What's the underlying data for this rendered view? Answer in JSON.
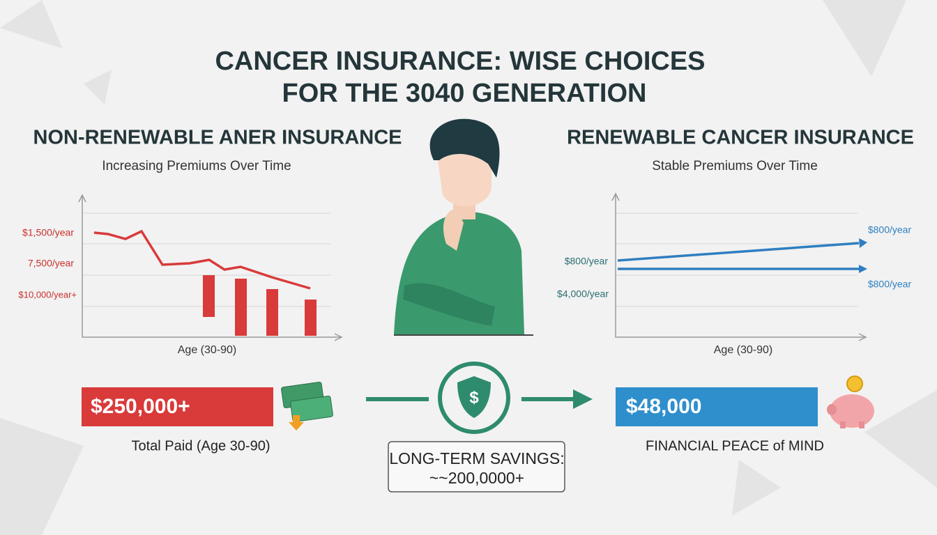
{
  "title": {
    "line1": "CANCER INSURANCE: WISE CHOICES",
    "line2": "FOR THE 3040 GENERATION"
  },
  "left": {
    "heading": "NON-RENEWABLE ANER INSURANCE",
    "subtitle": "Increasing Premiums Over Time",
    "axis_labels": [
      "$1,500/year",
      "7,500/year",
      "$10,000/year+"
    ],
    "x_label": "Age (30-90)",
    "total": "$250,000+",
    "caption": "Total Paid (Age 30-90)"
  },
  "right": {
    "heading": "RENEWABLE CANCER INSURANCE",
    "subtitle": "Stable Premiums Over Time",
    "axis_labels": [
      "$800/year",
      "$4,000/year"
    ],
    "end_labels": [
      "$800/year",
      "$800/year"
    ],
    "x_label": "Age (30-90)",
    "total": "$48,000",
    "caption": "FINANCIAL PEACE of MIND"
  },
  "savings": {
    "line1": "LONG-TERM SAVINGS:",
    "line2": "~~200,0000+"
  }
}
